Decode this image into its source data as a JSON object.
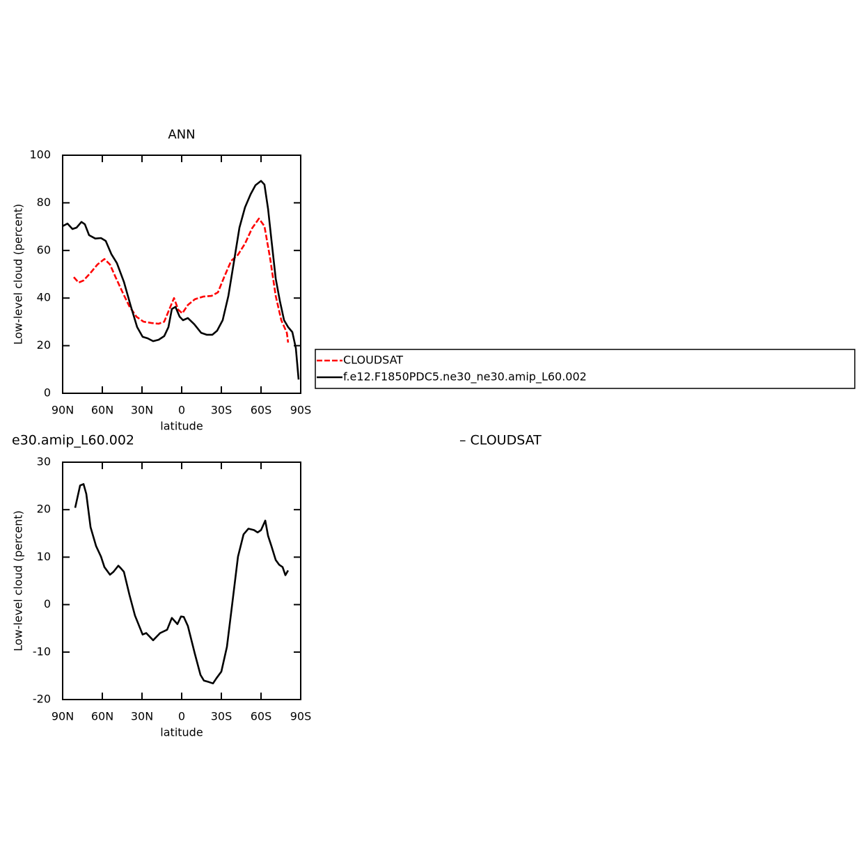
{
  "chart_data": [
    {
      "type": "line",
      "title": "ANN",
      "xlabel": "latitude",
      "ylabel": "Low-level cloud (percent)",
      "xlim": [
        90,
        -90
      ],
      "ylim": [
        0,
        100
      ],
      "xticks": [
        {
          "value": 90,
          "label": "90N"
        },
        {
          "value": 60,
          "label": "60N"
        },
        {
          "value": 30,
          "label": "30N"
        },
        0,
        {
          "value": -30,
          "label": "30S"
        },
        {
          "value": -60,
          "label": "60S"
        },
        {
          "value": -90,
          "label": "90S"
        }
      ],
      "yticks": [
        0,
        20,
        40,
        60,
        80,
        100
      ],
      "legend": "right",
      "series": [
        {
          "name": "CLOUDSAT",
          "color": "#ff0000",
          "dashed": true,
          "x": [
            81.6,
            77.9,
            74.2,
            68.9,
            63.7,
            58.4,
            54.2,
            50,
            44.7,
            39.5,
            34.2,
            28.9,
            22.6,
            17.4,
            13.2,
            9.5,
            5.8,
            2.6,
            -0.5,
            -4.7,
            -10,
            -16.3,
            -22.6,
            -27.4,
            -32.1,
            -37.4,
            -42.6,
            -47.9,
            -53.2,
            -58.4,
            -62.6,
            -66.8,
            -71.1,
            -75.3,
            -79.5,
            -80.5
          ],
          "values": [
            48.8,
            46.5,
            47.4,
            50.6,
            54.1,
            56.4,
            54.1,
            48.8,
            42.4,
            36.5,
            32.2,
            30.1,
            29.5,
            29.2,
            30.1,
            35.1,
            40,
            35.1,
            33.6,
            37.1,
            39.5,
            40.6,
            40.9,
            42.4,
            48.8,
            55.6,
            58.2,
            62.9,
            69.3,
            73.4,
            70.2,
            57,
            40.9,
            30.7,
            25.4,
            21.3
          ]
        },
        {
          "name": "f.e12.F1850PDC5.ne30_ne30.amip_L60.002",
          "color": "#000000",
          "dashed": false,
          "x": [
            90,
            86.3,
            82.6,
            79.5,
            75.8,
            73.2,
            70,
            65.3,
            61,
            57.4,
            53.2,
            49,
            43.7,
            38.4,
            33.7,
            29.5,
            25.8,
            21.6,
            17.4,
            13.2,
            10,
            7.4,
            4.7,
            1.6,
            -1,
            -4.7,
            -9.5,
            -14.7,
            -18.9,
            -23.2,
            -26.8,
            -31,
            -35.3,
            -39.5,
            -43.7,
            -47.9,
            -52.1,
            -55.8,
            -60,
            -62.6,
            -65.3,
            -67.9,
            -71.1,
            -74.2,
            -77.4,
            -80.5,
            -83.7,
            -86.3,
            -88.4
          ],
          "values": [
            70.2,
            71.3,
            69,
            69.6,
            72,
            71,
            66.4,
            65,
            65.2,
            64,
            58.5,
            54.7,
            46.8,
            36.5,
            27.8,
            23.7,
            23.1,
            21.9,
            22.5,
            24,
            27.8,
            35.4,
            36.3,
            32.2,
            30.7,
            31.6,
            29,
            25.4,
            24.6,
            24.6,
            26.3,
            30.7,
            40.9,
            55.3,
            69.6,
            78.1,
            83.6,
            87.4,
            89.2,
            87.7,
            77.5,
            64.3,
            48.2,
            38.9,
            30.7,
            27.8,
            25.7,
            19,
            5.8
          ]
        }
      ]
    },
    {
      "type": "line",
      "title": "e30.amip_L60.002",
      "subtitle": "– CLOUDSAT",
      "xlabel": "latitude",
      "ylabel": "Low-level cloud (percent)",
      "xlim": [
        90,
        -90
      ],
      "ylim": [
        -20,
        30
      ],
      "xticks": [
        {
          "value": 90,
          "label": "90N"
        },
        {
          "value": 60,
          "label": "60N"
        },
        {
          "value": 30,
          "label": "30N"
        },
        0,
        {
          "value": -30,
          "label": "30S"
        },
        {
          "value": -60,
          "label": "60S"
        },
        {
          "value": -90,
          "label": "90S"
        }
      ],
      "yticks": [
        -20,
        -10,
        0,
        10,
        20,
        30
      ],
      "series": [
        {
          "color": "#000000",
          "dashed": false,
          "x": [
            80.5,
            76.8,
            74.2,
            72.1,
            68.9,
            64.7,
            61,
            58.4,
            54.2,
            51.6,
            47.9,
            45.8,
            43.7,
            39.5,
            35.3,
            29.5,
            26.8,
            21.6,
            16.3,
            11,
            7.4,
            3.2,
            0.5,
            -1.6,
            -4.7,
            -10,
            -14.2,
            -16.8,
            -20.5,
            -23.7,
            -26.3,
            -30,
            -34.2,
            -38.4,
            -42.6,
            -46.8,
            -50.5,
            -54.7,
            -57.4,
            -60,
            -63.2,
            -65.3,
            -67.9,
            -71.1,
            -73.7,
            -76.3,
            -78.4,
            -80.5
          ],
          "values": [
            20.4,
            25.1,
            25.4,
            23.3,
            16.3,
            12.3,
            10.1,
            7.9,
            6.3,
            6.9,
            8.2,
            7.6,
            6.9,
            2.1,
            -2.3,
            -6.3,
            -6,
            -7.5,
            -6,
            -5.3,
            -2.8,
            -4.1,
            -2.5,
            -2.6,
            -4.5,
            -10.4,
            -14.8,
            -16,
            -16.3,
            -16.6,
            -15.5,
            -14.1,
            -8.9,
            0.6,
            10.1,
            14.8,
            16,
            15.7,
            15.2,
            15.7,
            17.7,
            14.5,
            12.3,
            9.4,
            8.4,
            7.9,
            6.2,
            7.2
          ]
        }
      ]
    }
  ]
}
